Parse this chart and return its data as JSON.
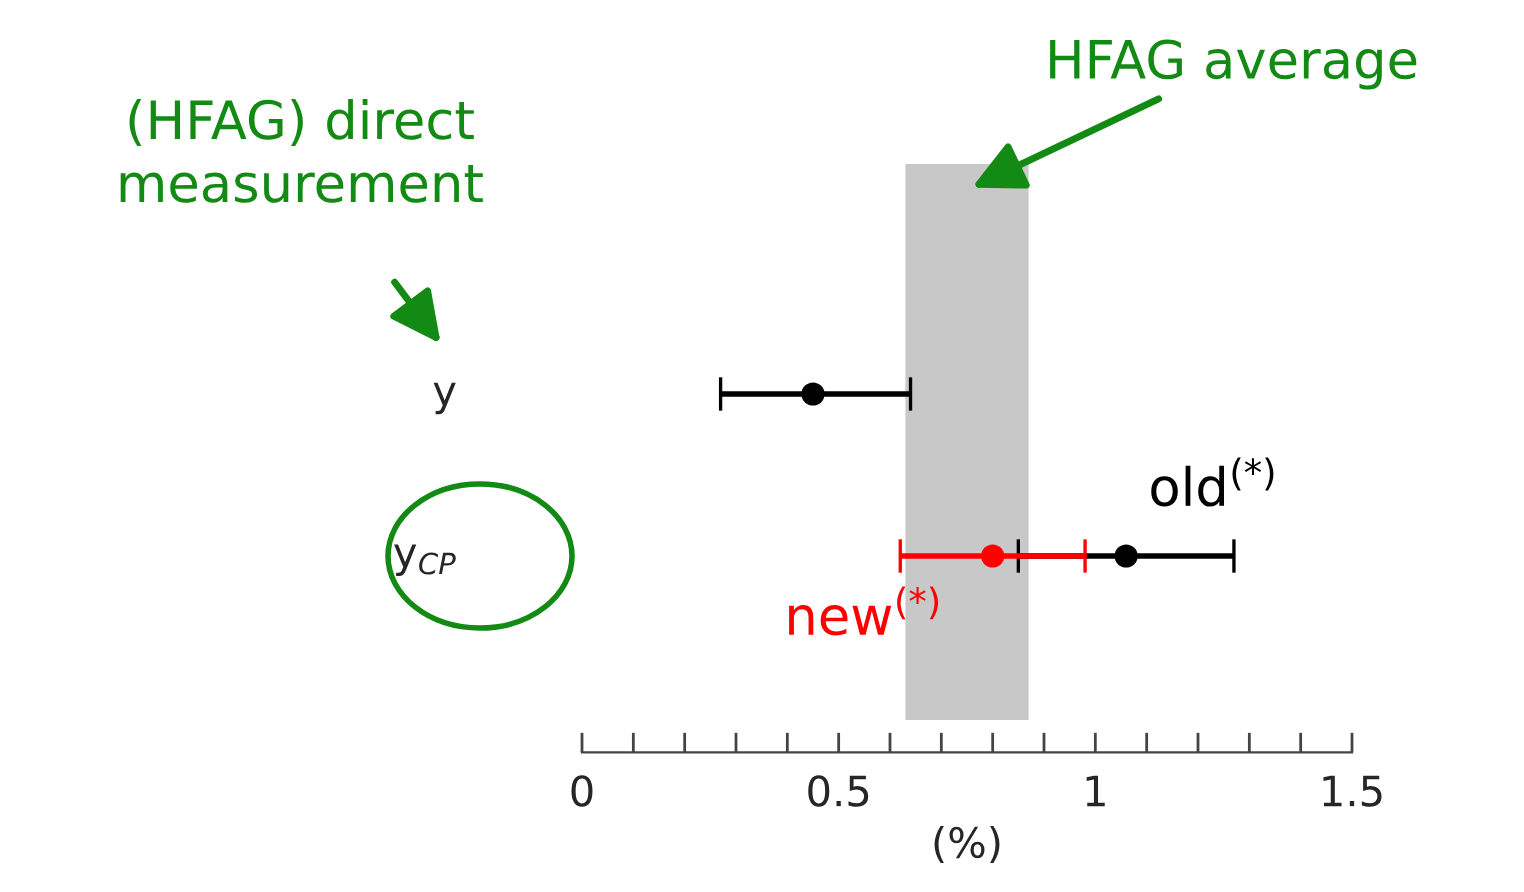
{
  "chart_data": {
    "type": "scatter",
    "orientation": "horizontal",
    "categories": [
      "y",
      "y$_{CP}$"
    ],
    "series": [
      {
        "color": "#000000",
        "values": [
          0.45,
          null
        ],
        "errors": [
          [
            0.27,
            0.64
          ],
          null
        ]
      },
      {
        "name": "old$^{(*)}$",
        "color": "#000000",
        "values": [
          null,
          1.06
        ],
        "errors": [
          null,
          [
            0.85,
            1.27
          ]
        ]
      },
      {
        "name": "new$^{(*)}$",
        "color": "#ff0000",
        "values": [
          null,
          0.8
        ],
        "errors": [
          null,
          [
            0.62,
            0.98
          ]
        ]
      }
    ],
    "xlabel": "(%)",
    "xlim": [
      0,
      1.5
    ],
    "xticks": [
      0,
      {
        "value": 0.1,
        "label": null
      },
      {
        "value": 0.2,
        "label": null
      },
      {
        "value": 0.3,
        "label": null
      },
      {
        "value": 0.4,
        "label": null
      },
      0.5,
      {
        "value": 0.6,
        "label": null
      },
      {
        "value": 0.7,
        "label": null
      },
      {
        "value": 0.8,
        "label": null
      },
      {
        "value": 0.9,
        "label": null
      },
      1,
      {
        "value": 1.1,
        "label": null
      },
      {
        "value": 1.2,
        "label": null
      },
      {
        "value": 1.3,
        "label": null
      },
      {
        "value": 1.4,
        "label": null
      },
      1.5
    ],
    "bands": [
      {
        "axis": "x",
        "from": 0.63,
        "to": 0.87,
        "label": "HFAG average",
        "color": "#c8c8c8"
      }
    ],
    "annotations": [
      "(HFAG) direct\nmeasurement"
    ],
    "marker": "circle",
    "grid": false
  }
}
